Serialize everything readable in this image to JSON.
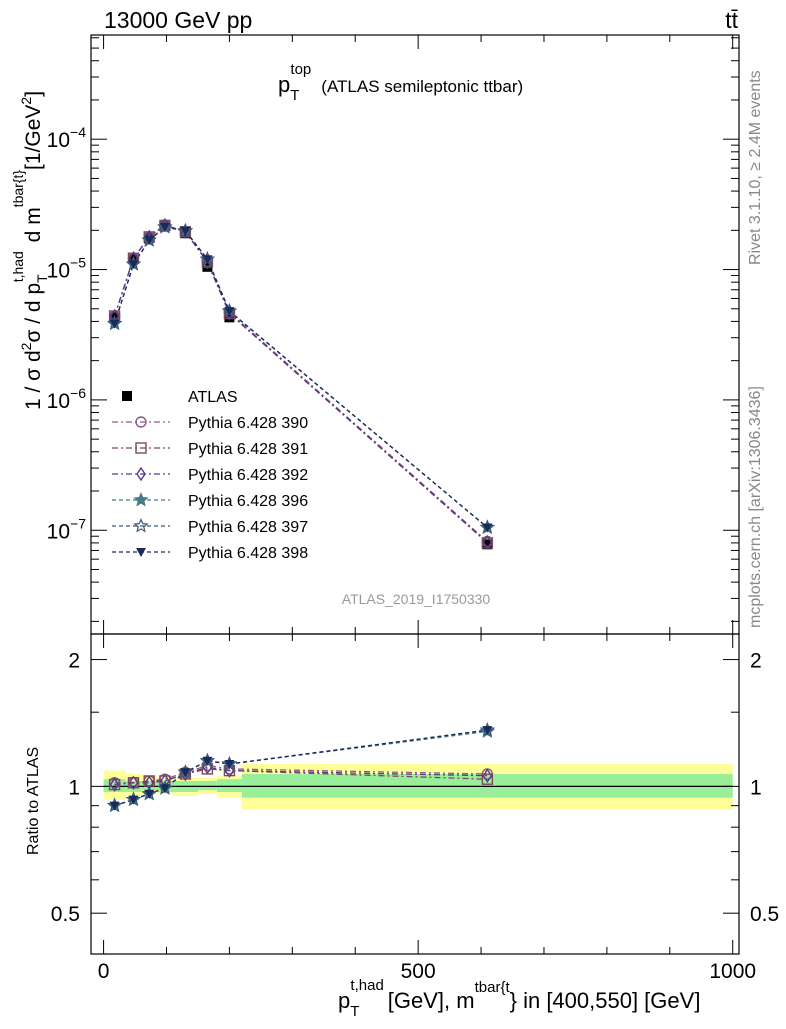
{
  "header": {
    "left": "13000 GeV pp",
    "right": "tt̄"
  },
  "side_text": {
    "rivet": "Rivet 3.1.10, ≥ 2.4M events",
    "mcplots": "mcplots.cern.ch [arXiv:1306.3436]"
  },
  "watermark": "ATLAS_2019_I1750330",
  "chart_data": [
    {
      "type": "line",
      "title": "p_T^top (ATLAS semileptonic ttbar)",
      "title_parts": {
        "main": "p",
        "sub": "T",
        "sup": "top",
        "rest": "(ATLAS semileptonic ttbar)"
      },
      "ylabel": "1 / σ d²σ / d p_T^{t,had} d m^{tbar{t}} [1/GeV²]",
      "y_scale": "log",
      "ylim": [
        1.6e-08,
        0.00063
      ],
      "xlim": [
        -20,
        1010
      ],
      "y_ticks": [
        {
          "value": 1e-07,
          "base": "10",
          "exp": "−7"
        },
        {
          "value": 1e-06,
          "base": "10",
          "exp": "−6"
        },
        {
          "value": 1e-05,
          "base": "10",
          "exp": "−5"
        },
        {
          "value": 0.0001,
          "base": "10",
          "exp": "−4"
        }
      ],
      "legend_position": "left-middle",
      "x": [
        17.5,
        47.5,
        72.5,
        97.5,
        130,
        165,
        200,
        610
      ],
      "data": {
        "name": "ATLAS",
        "values": [
          4.3e-06,
          1.2e-05,
          1.75e-05,
          2.15e-05,
          1.9e-05,
          1.05e-05,
          4.3e-06,
          7.8e-08
        ]
      },
      "series": [
        {
          "name": "Pythia 6.428 390",
          "color": "#8a5a8a",
          "marker": "circle-open",
          "dash": "6,3,2,3",
          "values": [
            4.4e-06,
            1.22e-05,
            1.78e-05,
            2.2e-05,
            1.95e-05,
            1.15e-05,
            4.7e-06,
            8.2e-08
          ]
        },
        {
          "name": "Pythia 6.428 391",
          "color": "#7a4a5a",
          "marker": "square-open",
          "dash": "6,3,2,3",
          "values": [
            4.4e-06,
            1.22e-05,
            1.78e-05,
            2.18e-05,
            1.95e-05,
            1.14e-05,
            4.6e-06,
            8e-08
          ]
        },
        {
          "name": "Pythia 6.428 392",
          "color": "#5a3a8a",
          "marker": "diamond-open",
          "dash": "6,3,2,3",
          "values": [
            4.4e-06,
            1.22e-05,
            1.78e-05,
            2.19e-05,
            1.95e-05,
            1.14e-05,
            4.6e-06,
            8.1e-08
          ]
        },
        {
          "name": "Pythia 6.428 396",
          "color": "#4a7a8a",
          "marker": "star-filled",
          "dash": "4,3",
          "values": [
            3.85e-06,
            1.1e-05,
            1.68e-05,
            2.12e-05,
            1.98e-05,
            1.2e-05,
            4.8e-06,
            1.05e-07
          ]
        },
        {
          "name": "Pythia 6.428 397",
          "color": "#3a5a7a",
          "marker": "star-open",
          "dash": "4,3",
          "values": [
            3.85e-06,
            1.1e-05,
            1.68e-05,
            2.12e-05,
            1.98e-05,
            1.2e-05,
            4.8e-06,
            1.05e-07
          ]
        },
        {
          "name": "Pythia 6.428 398",
          "color": "#1a2a5a",
          "marker": "triangle-down-filled",
          "dash": "4,3",
          "values": [
            3.85e-06,
            1.1e-05,
            1.68e-05,
            2.12e-05,
            1.98e-05,
            1.2e-05,
            4.8e-06,
            1.05e-07
          ]
        }
      ]
    },
    {
      "type": "line",
      "title": "",
      "ylabel": "Ratio to ATLAS",
      "y_scale": "log",
      "ylim": [
        0.4,
        2.3
      ],
      "xlim": [
        -20,
        1010
      ],
      "y_ticks": [
        {
          "value": 0.5,
          "label": "0.5"
        },
        {
          "value": 1,
          "label": "1"
        },
        {
          "value": 2,
          "label": "2"
        }
      ],
      "x_ticks": [
        {
          "value": 0,
          "label": "0"
        },
        {
          "value": 500,
          "label": "500"
        },
        {
          "value": 1000,
          "label": "1000"
        }
      ],
      "xlabel": "p_T^{t,had} [GeV], m^{tbar{t}} in [400,550] [GeV]",
      "xlabel_parts": {
        "p": "p",
        "sub": "T",
        "sup": "t,had",
        "mid": "[GeV], m",
        "sup2": "tbar{t",
        "end": "} in [400,550] [GeV]"
      },
      "bands": {
        "x_edges": [
          0,
          35,
          60,
          85,
          110,
          150,
          180,
          220,
          1000
        ],
        "stat_syst_yellow": [
          [
            0.93,
            1.09
          ],
          [
            0.95,
            1.07
          ],
          [
            0.96,
            1.06
          ],
          [
            0.96,
            1.05
          ],
          [
            0.95,
            1.05
          ],
          [
            0.96,
            1.05
          ],
          [
            0.94,
            1.06
          ],
          [
            0.88,
            1.13
          ]
        ],
        "stat_green": [
          [
            0.97,
            1.04
          ],
          [
            0.97,
            1.03
          ],
          [
            0.98,
            1.03
          ],
          [
            0.97,
            1.03
          ],
          [
            0.97,
            1.03
          ],
          [
            0.98,
            1.03
          ],
          [
            0.97,
            1.04
          ],
          [
            0.94,
            1.07
          ]
        ]
      },
      "x": [
        17.5,
        47.5,
        72.5,
        97.5,
        130,
        165,
        200,
        610
      ],
      "series": [
        {
          "name": "Pythia 6.428 390",
          "values": [
            1.02,
            1.02,
            1.03,
            1.04,
            1.08,
            1.12,
            1.1,
            1.07
          ]
        },
        {
          "name": "Pythia 6.428 391",
          "values": [
            1.01,
            1.02,
            1.03,
            1.03,
            1.07,
            1.1,
            1.09,
            1.04
          ]
        },
        {
          "name": "Pythia 6.428 392",
          "values": [
            1.01,
            1.02,
            1.02,
            1.03,
            1.07,
            1.11,
            1.09,
            1.06
          ]
        },
        {
          "name": "Pythia 6.428 396",
          "values": [
            0.9,
            0.93,
            0.96,
            0.99,
            1.08,
            1.15,
            1.13,
            1.35
          ]
        },
        {
          "name": "Pythia 6.428 397",
          "values": [
            0.9,
            0.93,
            0.96,
            0.99,
            1.08,
            1.15,
            1.13,
            1.36
          ]
        },
        {
          "name": "Pythia 6.428 398",
          "values": [
            0.9,
            0.93,
            0.96,
            0.99,
            1.08,
            1.15,
            1.13,
            1.36
          ]
        }
      ]
    }
  ]
}
